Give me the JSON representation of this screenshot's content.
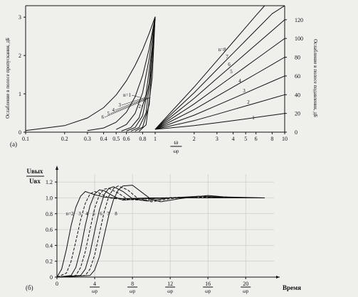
{
  "chart_data": [
    {
      "type": "line",
      "panel_label": "(a)",
      "xscale": "log",
      "xlabel_num": "ω",
      "xlabel_den": "ωр",
      "x_ticks_pass": [
        "0.1",
        "0.2",
        "0.3",
        "0.4",
        "0.5",
        "0.6",
        "0.8",
        "1"
      ],
      "x_ticks_stop": [
        "2",
        "3",
        "4",
        "5",
        "6",
        "8",
        "10"
      ],
      "y_left": {
        "label": "Ослабление в полосе пропускания, дБ",
        "ticks": [
          "0",
          "1",
          "2",
          "3"
        ],
        "range": [
          0,
          3.3
        ]
      },
      "y_right": {
        "label": "Ослабление в полосе подавления, дБ",
        "ticks": [
          "0",
          "20",
          "40",
          "60",
          "80",
          "100",
          "120"
        ],
        "range": [
          0,
          135
        ]
      },
      "pass_labels": [
        "n=1",
        "2",
        "3",
        "4",
        "5",
        "6"
      ],
      "stop_labels": [
        "1",
        "2",
        "3",
        "4",
        "5",
        "6",
        "7",
        "n=8"
      ],
      "series": [
        {
          "n": 1,
          "pass": [
            [
              0.1,
              0.04
            ],
            [
              0.2,
              0.17
            ],
            [
              0.3,
              0.37
            ],
            [
              0.4,
              0.64
            ],
            [
              0.5,
              0.97
            ],
            [
              0.6,
              1.34
            ],
            [
              0.7,
              1.74
            ],
            [
              0.8,
              2.15
            ],
            [
              0.9,
              2.58
            ],
            [
              1.0,
              3.01
            ]
          ],
          "stop": [
            [
              1.0,
              3.0
            ],
            [
              2,
              7.0
            ],
            [
              3,
              10.0
            ],
            [
              4,
              12.3
            ],
            [
              5,
              14.1
            ],
            [
              6,
              15.7
            ],
            [
              8,
              18.1
            ],
            [
              10,
              20.0
            ]
          ]
        },
        {
          "n": 2,
          "pass": [
            [
              0.3,
              0.04
            ],
            [
              0.4,
              0.11
            ],
            [
              0.5,
              0.26
            ],
            [
              0.6,
              0.52
            ],
            [
              0.7,
              0.92
            ],
            [
              0.8,
              1.48
            ],
            [
              0.9,
              2.18
            ],
            [
              1.0,
              3.01
            ]
          ],
          "stop": [
            [
              1.0,
              3.0
            ],
            [
              2,
              12.3
            ],
            [
              3,
              19.1
            ],
            [
              4,
              24.1
            ],
            [
              5,
              28.0
            ],
            [
              6,
              31.1
            ],
            [
              8,
              36.1
            ],
            [
              10,
              40.0
            ]
          ]
        },
        {
          "n": 3,
          "pass": [
            [
              0.5,
              0.07
            ],
            [
              0.6,
              0.2
            ],
            [
              0.7,
              0.49
            ],
            [
              0.8,
              1.03
            ],
            [
              0.9,
              1.92
            ],
            [
              1.0,
              3.01
            ]
          ],
          "stop": [
            [
              1.0,
              3.0
            ],
            [
              2,
              18.1
            ],
            [
              3,
              28.6
            ],
            [
              4,
              36.1
            ],
            [
              5,
              41.9
            ],
            [
              6,
              46.7
            ],
            [
              8,
              54.2
            ],
            [
              10,
              60.0
            ]
          ]
        },
        {
          "n": 4,
          "pass": [
            [
              0.55,
              0.03
            ],
            [
              0.65,
              0.12
            ],
            [
              0.75,
              0.37
            ],
            [
              0.85,
              0.99
            ],
            [
              0.95,
              2.22
            ],
            [
              1.0,
              3.01
            ]
          ],
          "stop": [
            [
              1.0,
              3.0
            ],
            [
              2,
              24.1
            ],
            [
              3,
              38.2
            ],
            [
              4,
              48.2
            ],
            [
              5,
              55.9
            ],
            [
              6,
              62.2
            ],
            [
              8,
              72.2
            ],
            [
              10,
              80.0
            ]
          ]
        },
        {
          "n": 5,
          "pass": [
            [
              0.6,
              0.03
            ],
            [
              0.7,
              0.12
            ],
            [
              0.8,
              0.43
            ],
            [
              0.9,
              1.29
            ],
            [
              1.0,
              3.01
            ]
          ],
          "stop": [
            [
              1.0,
              3.0
            ],
            [
              2,
              30.1
            ],
            [
              3,
              47.7
            ],
            [
              4,
              60.2
            ],
            [
              5,
              69.9
            ],
            [
              6,
              77.8
            ],
            [
              8,
              90.3
            ],
            [
              10,
              100.0
            ]
          ]
        },
        {
          "n": 6,
          "pass": [
            [
              0.65,
              0.03
            ],
            [
              0.75,
              0.12
            ],
            [
              0.85,
              0.5
            ],
            [
              0.95,
              1.85
            ],
            [
              1.0,
              3.01
            ]
          ],
          "stop": [
            [
              1.0,
              3.0
            ],
            [
              2,
              36.1
            ],
            [
              3,
              57.3
            ],
            [
              4,
              72.2
            ],
            [
              5,
              83.9
            ],
            [
              6,
              93.4
            ],
            [
              8,
              108.4
            ],
            [
              10,
              120.0
            ]
          ]
        },
        {
          "n": 7,
          "pass": [
            [
              0.7,
              0.03
            ],
            [
              0.8,
              0.13
            ],
            [
              0.9,
              0.72
            ],
            [
              1.0,
              3.01
            ]
          ],
          "stop": [
            [
              1.0,
              3.0
            ],
            [
              2,
              42.1
            ],
            [
              3,
              66.8
            ],
            [
              4,
              84.3
            ],
            [
              5,
              97.8
            ],
            [
              6,
              108.9
            ],
            [
              8,
              126.4
            ],
            [
              10,
              135.0
            ]
          ]
        },
        {
          "n": 8,
          "pass": [
            [
              0.75,
              0.02
            ],
            [
              0.85,
              0.19
            ],
            [
              0.95,
              1.43
            ],
            [
              1.0,
              3.01
            ]
          ],
          "stop": [
            [
              1.0,
              3.0
            ],
            [
              2,
              48.2
            ],
            [
              3,
              76.3
            ],
            [
              4,
              96.3
            ],
            [
              5,
              111.8
            ],
            [
              6,
              124.5
            ],
            [
              7,
              135.0
            ]
          ]
        }
      ]
    },
    {
      "type": "line",
      "panel_label": "(б)",
      "ylabel_num": "Uвых",
      "ylabel_den": "Uвх",
      "xlabel": "Время",
      "y_ticks": [
        "0",
        "0.2",
        "0.4",
        "0.6",
        "0.8",
        "1.0",
        "1.2"
      ],
      "ylim": [
        0,
        1.3
      ],
      "xlim": [
        0,
        23
      ],
      "x_ticks": [
        {
          "value": 0,
          "num": "0",
          "den": ""
        },
        {
          "value": 4,
          "num": "4",
          "den": "ωр"
        },
        {
          "value": 8,
          "num": "8",
          "den": "ωр"
        },
        {
          "value": 12,
          "num": "12",
          "den": "ωр"
        },
        {
          "value": 16,
          "num": "16",
          "den": "ωр"
        },
        {
          "value": 20,
          "num": "20",
          "den": "ωр"
        }
      ],
      "n_labels": [
        "n=2",
        "3",
        "4",
        "5",
        "6",
        "7",
        "8"
      ],
      "series": [
        {
          "n": 2,
          "dash": false,
          "points": [
            [
              0,
              0
            ],
            [
              0.5,
              0.1
            ],
            [
              1,
              0.35
            ],
            [
              1.5,
              0.65
            ],
            [
              2,
              0.88
            ],
            [
              2.5,
              1.02
            ],
            [
              3,
              1.08
            ],
            [
              3.5,
              1.06
            ],
            [
              4,
              1.04
            ],
            [
              5,
              1.01
            ],
            [
              7,
              0.99
            ],
            [
              10,
              1.0
            ],
            [
              22,
              1.0
            ]
          ]
        },
        {
          "n": 3,
          "dash": true,
          "points": [
            [
              0,
              0
            ],
            [
              1,
              0.05
            ],
            [
              1.5,
              0.2
            ],
            [
              2,
              0.45
            ],
            [
              2.5,
              0.72
            ],
            [
              3,
              0.93
            ],
            [
              3.5,
              1.05
            ],
            [
              4,
              1.08
            ],
            [
              4.5,
              1.06
            ],
            [
              5.5,
              1.0
            ],
            [
              7,
              0.98
            ],
            [
              9,
              0.99
            ],
            [
              12,
              1.0
            ],
            [
              22,
              1.0
            ]
          ]
        },
        {
          "n": 4,
          "dash": false,
          "points": [
            [
              0,
              0
            ],
            [
              1.5,
              0.02
            ],
            [
              2,
              0.12
            ],
            [
              2.5,
              0.35
            ],
            [
              3,
              0.65
            ],
            [
              3.5,
              0.9
            ],
            [
              4,
              1.05
            ],
            [
              4.5,
              1.1
            ],
            [
              5,
              1.09
            ],
            [
              6,
              1.02
            ],
            [
              7,
              0.97
            ],
            [
              9,
              0.99
            ],
            [
              12,
              1.0
            ],
            [
              22,
              1.0
            ]
          ]
        },
        {
          "n": 5,
          "dash": true,
          "points": [
            [
              0,
              0
            ],
            [
              2,
              0.02
            ],
            [
              2.5,
              0.12
            ],
            [
              3,
              0.32
            ],
            [
              3.5,
              0.6
            ],
            [
              4,
              0.87
            ],
            [
              4.5,
              1.04
            ],
            [
              5,
              1.11
            ],
            [
              5.5,
              1.12
            ],
            [
              6.5,
              1.06
            ],
            [
              7.5,
              0.98
            ],
            [
              9,
              0.97
            ],
            [
              11,
              1.0
            ],
            [
              14,
              1.01
            ],
            [
              22,
              1.0
            ]
          ]
        },
        {
          "n": 6,
          "dash": false,
          "points": [
            [
              0,
              0
            ],
            [
              2.5,
              0.02
            ],
            [
              3,
              0.1
            ],
            [
              3.5,
              0.3
            ],
            [
              4,
              0.58
            ],
            [
              4.5,
              0.85
            ],
            [
              5,
              1.04
            ],
            [
              5.5,
              1.12
            ],
            [
              6,
              1.14
            ],
            [
              7,
              1.08
            ],
            [
              8,
              0.99
            ],
            [
              9.5,
              0.96
            ],
            [
              12,
              1.0
            ],
            [
              15,
              1.02
            ],
            [
              22,
              1.0
            ]
          ]
        },
        {
          "n": 7,
          "dash": true,
          "points": [
            [
              0,
              0
            ],
            [
              3,
              0.02
            ],
            [
              3.5,
              0.1
            ],
            [
              4,
              0.28
            ],
            [
              4.5,
              0.55
            ],
            [
              5,
              0.82
            ],
            [
              5.5,
              1.02
            ],
            [
              6,
              1.12
            ],
            [
              6.5,
              1.15
            ],
            [
              7.5,
              1.1
            ],
            [
              8.5,
              1.0
            ],
            [
              10,
              0.95
            ],
            [
              12,
              0.99
            ],
            [
              15,
              1.02
            ],
            [
              18,
              1.0
            ],
            [
              22,
              1.0
            ]
          ]
        },
        {
          "n": 8,
          "dash": false,
          "points": [
            [
              0,
              0
            ],
            [
              3.5,
              0.02
            ],
            [
              4,
              0.09
            ],
            [
              4.5,
              0.26
            ],
            [
              5,
              0.52
            ],
            [
              5.5,
              0.78
            ],
            [
              6,
              0.98
            ],
            [
              6.5,
              1.1
            ],
            [
              7,
              1.15
            ],
            [
              8,
              1.16
            ],
            [
              9,
              1.07
            ],
            [
              10,
              0.98
            ],
            [
              11,
              0.95
            ],
            [
              13,
              0.99
            ],
            [
              16,
              1.03
            ],
            [
              19,
              1.0
            ],
            [
              22,
              1.0
            ]
          ]
        }
      ]
    }
  ]
}
